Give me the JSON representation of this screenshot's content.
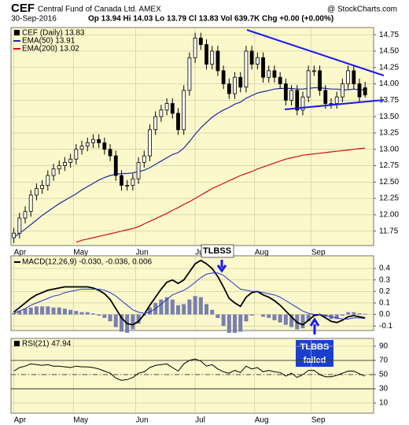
{
  "chart_data": [
    {
      "type": "candlestick",
      "title": "CEF",
      "subtitle": "Central Fund of Canada Ltd.  AMEX",
      "source": "@ StockCharts.com",
      "date": "30-Sep-2016",
      "quote": "Op 13.94  Hi 14.03  Lo 13.79  Cl 13.83  Vol 639.7K  Chg +0.00 (+0.00%)",
      "name": "CEF (Daily) 13.83",
      "x": [
        0,
        2,
        4,
        6,
        8,
        10,
        12,
        14,
        16,
        18,
        20,
        22,
        24,
        26,
        28,
        30,
        32,
        34,
        36,
        38,
        40,
        42,
        44,
        46,
        48,
        50,
        52,
        54,
        56,
        58,
        60,
        62,
        64,
        66,
        68,
        70,
        72,
        74,
        76,
        78,
        80,
        82,
        84,
        86,
        88,
        90,
        92,
        94,
        96,
        98,
        100,
        102,
        104,
        106,
        108,
        110,
        112,
        114,
        116,
        118,
        120,
        122,
        124
      ],
      "open": [
        11.65,
        11.72,
        11.95,
        12.05,
        12.3,
        12.4,
        12.45,
        12.6,
        12.7,
        12.75,
        12.8,
        12.85,
        13.0,
        13.05,
        13.1,
        13.15,
        13.1,
        13.0,
        12.9,
        12.6,
        12.45,
        12.45,
        12.55,
        12.8,
        12.9,
        13.3,
        13.5,
        13.6,
        13.7,
        13.55,
        13.3,
        13.9,
        14.4,
        14.7,
        14.6,
        14.3,
        14.5,
        14.2,
        14.0,
        13.85,
        14.1,
        13.95,
        14.5,
        14.3,
        14.4,
        14.1,
        14.2,
        14.1,
        14.0,
        13.75,
        13.9,
        13.6,
        13.8,
        14.2,
        14.2,
        13.9,
        13.7,
        13.7,
        13.8,
        14.0,
        14.2,
        14.0,
        13.94
      ],
      "high": [
        11.8,
        12.03,
        12.13,
        12.38,
        12.48,
        12.53,
        12.68,
        12.78,
        12.83,
        12.88,
        12.93,
        13.08,
        13.13,
        13.18,
        13.23,
        13.23,
        13.18,
        13.08,
        12.98,
        12.68,
        12.53,
        12.63,
        12.88,
        12.98,
        13.38,
        13.58,
        13.68,
        13.78,
        13.78,
        13.63,
        13.98,
        14.48,
        14.78,
        14.78,
        14.68,
        14.58,
        14.58,
        14.28,
        14.08,
        14.18,
        14.18,
        14.58,
        14.58,
        14.48,
        14.48,
        14.28,
        14.28,
        14.18,
        14.08,
        13.98,
        13.98,
        13.88,
        14.28,
        14.28,
        14.28,
        13.98,
        13.78,
        13.88,
        14.08,
        14.28,
        14.28,
        14.08,
        14.03
      ],
      "low": [
        11.57,
        11.64,
        11.87,
        11.97,
        12.22,
        12.32,
        12.37,
        12.52,
        12.62,
        12.67,
        12.72,
        12.77,
        12.92,
        12.97,
        13.02,
        13.02,
        12.92,
        12.82,
        12.52,
        12.37,
        12.37,
        12.37,
        12.47,
        12.72,
        12.82,
        13.22,
        13.42,
        13.52,
        13.47,
        13.22,
        13.22,
        13.82,
        14.32,
        14.52,
        14.22,
        14.22,
        14.12,
        13.92,
        13.77,
        13.77,
        13.87,
        13.87,
        14.22,
        14.22,
        14.02,
        14.02,
        14.02,
        13.92,
        13.67,
        13.67,
        13.52,
        13.52,
        13.72,
        14.12,
        13.82,
        13.62,
        13.62,
        13.62,
        13.72,
        13.92,
        13.92,
        13.72,
        13.79
      ],
      "close": [
        11.72,
        11.95,
        12.05,
        12.3,
        12.4,
        12.45,
        12.6,
        12.7,
        12.75,
        12.8,
        12.85,
        13.0,
        13.05,
        13.1,
        13.15,
        13.1,
        13.0,
        12.9,
        12.6,
        12.45,
        12.45,
        12.55,
        12.8,
        12.9,
        13.3,
        13.5,
        13.6,
        13.7,
        13.55,
        13.3,
        13.9,
        14.4,
        14.7,
        14.6,
        14.3,
        14.5,
        14.2,
        14.0,
        13.85,
        14.1,
        13.95,
        14.5,
        14.3,
        14.4,
        14.1,
        14.2,
        14.1,
        14.0,
        13.75,
        13.9,
        13.6,
        13.8,
        14.2,
        14.2,
        13.9,
        13.7,
        13.7,
        13.8,
        14.0,
        14.2,
        14.0,
        13.8,
        13.83
      ],
      "overlays": [
        {
          "name": "EMA(50) 13.91",
          "color": "#1c2a9c",
          "values": [
            11.65,
            11.72,
            11.78,
            11.85,
            11.92,
            11.99,
            12.05,
            12.11,
            12.17,
            12.22,
            12.27,
            12.32,
            12.38,
            12.43,
            12.48,
            12.53,
            12.57,
            12.6,
            12.62,
            12.63,
            12.63,
            12.64,
            12.66,
            12.68,
            12.72,
            12.77,
            12.82,
            12.87,
            12.92,
            12.95,
            13.02,
            13.12,
            13.23,
            13.33,
            13.41,
            13.49,
            13.55,
            13.6,
            13.64,
            13.69,
            13.72,
            13.78,
            13.82,
            13.86,
            13.88,
            13.9,
            13.92,
            13.93,
            13.93,
            13.93,
            13.92,
            13.92,
            13.93,
            13.94,
            13.94,
            13.93,
            13.92,
            13.92,
            13.91,
            13.91,
            13.92,
            13.91,
            13.91
          ]
        },
        {
          "name": "EMA(200) 13.02",
          "color": "#cc1111",
          "values": [
            null,
            null,
            null,
            null,
            null,
            null,
            null,
            null,
            null,
            null,
            null,
            11.58,
            11.61,
            11.63,
            11.65,
            11.67,
            11.69,
            11.71,
            11.73,
            11.75,
            11.77,
            11.79,
            11.82,
            11.86,
            11.9,
            11.94,
            11.98,
            12.02,
            12.07,
            12.11,
            12.16,
            12.2,
            12.25,
            12.3,
            12.35,
            12.4,
            12.44,
            12.48,
            12.52,
            12.56,
            12.6,
            12.63,
            12.66,
            12.7,
            12.73,
            12.76,
            12.79,
            12.82,
            12.85,
            12.87,
            12.89,
            12.91,
            12.92,
            12.93,
            12.94,
            12.95,
            12.96,
            12.97,
            12.98,
            12.99,
            13.0,
            13.01,
            13.02
          ]
        }
      ],
      "xlim": [
        -1,
        127
      ],
      "xticks": [
        {
          "value": 0,
          "label": "Apr"
        },
        {
          "value": 21,
          "label": "May"
        },
        {
          "value": 43,
          "label": "Jun"
        },
        {
          "value": 64,
          "label": "Jul"
        },
        {
          "value": 85,
          "label": "Aug"
        },
        {
          "value": 105,
          "label": "Sep"
        }
      ],
      "ylim": [
        11.53,
        14.86
      ],
      "yticks": [
        11.75,
        {
          "value": 12,
          "label": "12.00"
        },
        12.25,
        {
          "value": 12.5,
          "label": "12.50"
        },
        12.75,
        {
          "value": 13,
          "label": "13.00"
        },
        13.25,
        {
          "value": 13.5,
          "label": "13.50"
        },
        13.75,
        {
          "value": 14,
          "label": "14.00"
        },
        14.25,
        {
          "value": 14.5,
          "label": "14.50"
        },
        14.75
      ],
      "grid": true
    },
    {
      "type": "macd",
      "label": "MACD(12,26,9) -0.030, -0.036, 0.006",
      "x": [
        0,
        2,
        4,
        6,
        8,
        10,
        12,
        14,
        16,
        18,
        20,
        22,
        24,
        26,
        28,
        30,
        32,
        34,
        36,
        38,
        40,
        42,
        44,
        46,
        48,
        50,
        52,
        54,
        56,
        58,
        60,
        62,
        64,
        66,
        68,
        70,
        72,
        74,
        76,
        78,
        80,
        82,
        84,
        86,
        88,
        90,
        92,
        94,
        96,
        98,
        100,
        102,
        104,
        106,
        108,
        110,
        112,
        114,
        116,
        118,
        120,
        122,
        124
      ],
      "series": [
        {
          "color": "#000000",
          "values": [
            0.02,
            0.06,
            0.1,
            0.14,
            0.17,
            0.19,
            0.21,
            0.22,
            0.23,
            0.24,
            0.24,
            0.24,
            0.24,
            0.24,
            0.23,
            0.21,
            0.18,
            0.13,
            0.05,
            -0.03,
            -0.08,
            -0.09,
            -0.06,
            0.0,
            0.08,
            0.15,
            0.22,
            0.28,
            0.3,
            0.27,
            0.3,
            0.37,
            0.44,
            0.47,
            0.44,
            0.4,
            0.33,
            0.24,
            0.14,
            0.1,
            0.07,
            0.15,
            0.19,
            0.2,
            0.17,
            0.15,
            0.12,
            0.08,
            0.03,
            -0.02,
            -0.07,
            -0.09,
            -0.05,
            -0.01,
            0.0,
            -0.03,
            -0.06,
            -0.07,
            -0.05,
            -0.02,
            -0.01,
            -0.02,
            -0.03
          ]
        },
        {
          "color": "#2233cc",
          "values": [
            0.01,
            0.03,
            0.05,
            0.08,
            0.1,
            0.12,
            0.14,
            0.16,
            0.17,
            0.19,
            0.2,
            0.21,
            0.22,
            0.22,
            0.22,
            0.22,
            0.21,
            0.19,
            0.16,
            0.12,
            0.08,
            0.04,
            0.02,
            0.01,
            0.02,
            0.05,
            0.09,
            0.13,
            0.17,
            0.19,
            0.21,
            0.24,
            0.28,
            0.32,
            0.35,
            0.36,
            0.36,
            0.34,
            0.3,
            0.26,
            0.22,
            0.21,
            0.2,
            0.2,
            0.19,
            0.18,
            0.17,
            0.15,
            0.12,
            0.09,
            0.06,
            0.03,
            0.01,
            0.0,
            0.0,
            -0.01,
            -0.02,
            -0.03,
            -0.04,
            -0.04,
            -0.03,
            -0.03,
            -0.036
          ]
        }
      ],
      "histogram": {
        "color": "#7a7fae",
        "values": [
          0.01,
          0.03,
          0.05,
          0.06,
          0.07,
          0.07,
          0.07,
          0.06,
          0.06,
          0.05,
          0.04,
          0.03,
          0.02,
          0.02,
          0.01,
          -0.01,
          -0.03,
          -0.06,
          -0.11,
          -0.15,
          -0.16,
          -0.13,
          -0.08,
          -0.01,
          0.06,
          0.1,
          0.13,
          0.15,
          0.13,
          0.08,
          0.09,
          0.13,
          0.16,
          0.15,
          0.09,
          0.04,
          -0.03,
          -0.1,
          -0.16,
          -0.16,
          -0.15,
          -0.06,
          -0.01,
          0.0,
          -0.02,
          -0.03,
          -0.05,
          -0.07,
          -0.09,
          -0.11,
          -0.13,
          -0.12,
          -0.06,
          -0.01,
          0.0,
          -0.02,
          -0.04,
          -0.04,
          -0.01,
          0.02,
          0.02,
          0.01,
          0.006
        ]
      },
      "annotations": [
        "TLBSS",
        "TLBBS",
        "failed"
      ],
      "xlim": [
        -1,
        127
      ],
      "ylim": [
        -0.14,
        0.51
      ],
      "yticks": [
        0.4,
        0.3,
        0.2,
        0.1,
        {
          "value": 0,
          "label": "0.0"
        },
        -0.1
      ]
    },
    {
      "type": "rsi",
      "label": "RSI(21) 47.94",
      "x": [
        0,
        2,
        4,
        6,
        8,
        10,
        12,
        14,
        16,
        18,
        20,
        22,
        24,
        26,
        28,
        30,
        32,
        34,
        36,
        38,
        40,
        42,
        44,
        46,
        48,
        50,
        52,
        54,
        56,
        58,
        60,
        62,
        64,
        66,
        68,
        70,
        72,
        74,
        76,
        78,
        80,
        82,
        84,
        86,
        88,
        90,
        92,
        94,
        96,
        98,
        100,
        102,
        104,
        106,
        108,
        110,
        112,
        114,
        116,
        118,
        120,
        122,
        124
      ],
      "values": [
        55,
        60,
        62,
        65,
        64,
        63,
        64,
        62,
        62,
        61,
        60,
        62,
        61,
        61,
        60,
        58,
        55,
        52,
        45,
        42,
        43,
        46,
        52,
        54,
        60,
        63,
        64,
        65,
        60,
        55,
        65,
        70,
        72,
        69,
        62,
        64,
        58,
        54,
        52,
        56,
        53,
        62,
        58,
        60,
        54,
        56,
        54,
        53,
        48,
        52,
        46,
        50,
        56,
        56,
        50,
        47,
        47,
        49,
        52,
        55,
        55,
        51,
        47.94
      ],
      "color": "#000000",
      "levels": [
        70,
        50,
        30
      ],
      "xlim": [
        -1,
        127
      ],
      "xticks": [
        {
          "value": 0,
          "label": "Apr"
        },
        {
          "value": 21,
          "label": "May"
        },
        {
          "value": 43,
          "label": "Jun"
        },
        {
          "value": 64,
          "label": "Jul"
        },
        {
          "value": 85,
          "label": "Aug"
        },
        {
          "value": 105,
          "label": "Sep"
        }
      ],
      "ylim": [
        -4.4,
        101
      ],
      "yticks": [
        90,
        70,
        50,
        30,
        10
      ]
    }
  ]
}
